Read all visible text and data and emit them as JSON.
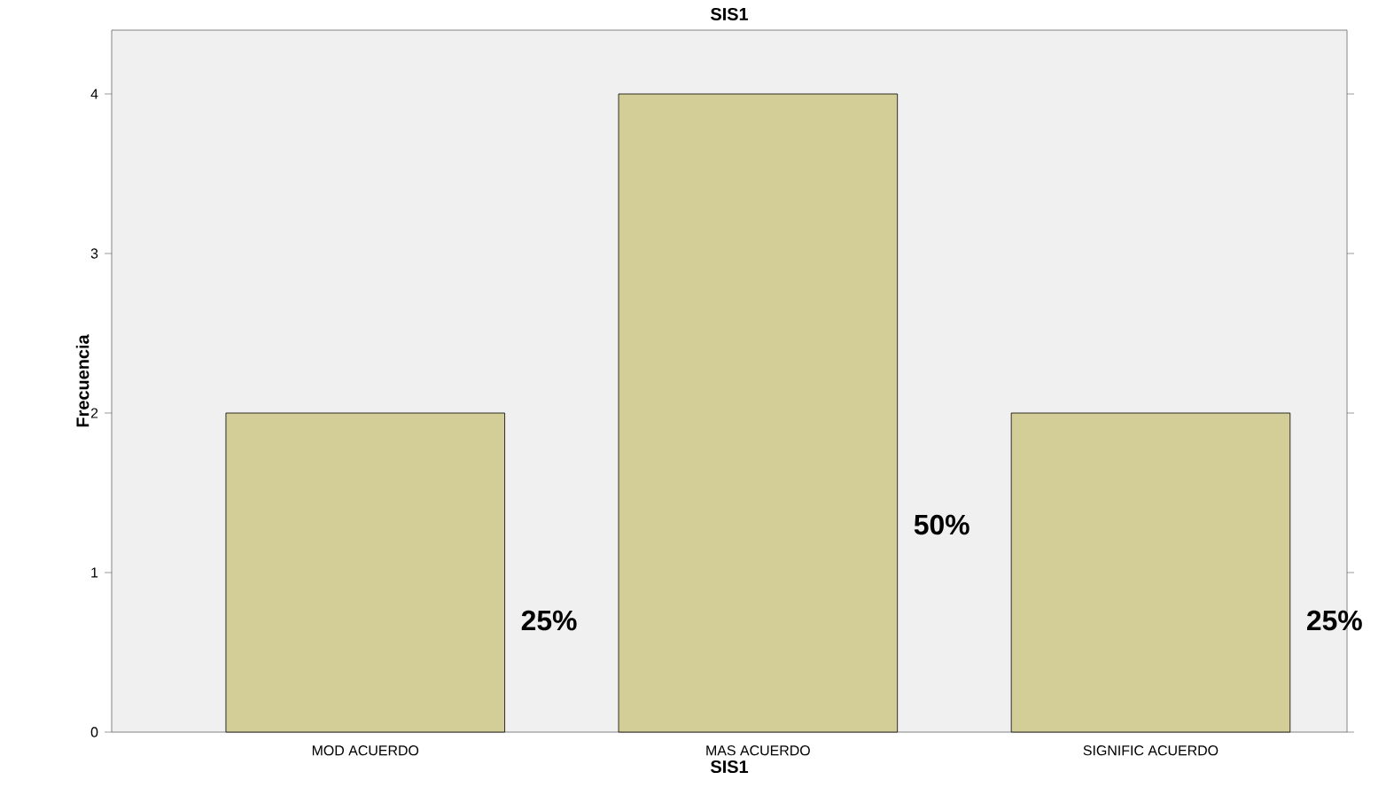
{
  "chart_data": {
    "type": "bar",
    "title": "SIS1",
    "xlabel": "SIS1",
    "ylabel": "Frecuencia",
    "categories": [
      "MOD ACUERDO",
      "MAS ACUERDO",
      "SIGNIFIC ACUERDO"
    ],
    "values": [
      2,
      4,
      2
    ],
    "color": "#d3ce97",
    "annotations": [
      "25%",
      "50%",
      "25%"
    ],
    "ylim": [
      0,
      4.4
    ],
    "yticks": [
      0,
      1,
      2,
      3,
      4
    ]
  }
}
